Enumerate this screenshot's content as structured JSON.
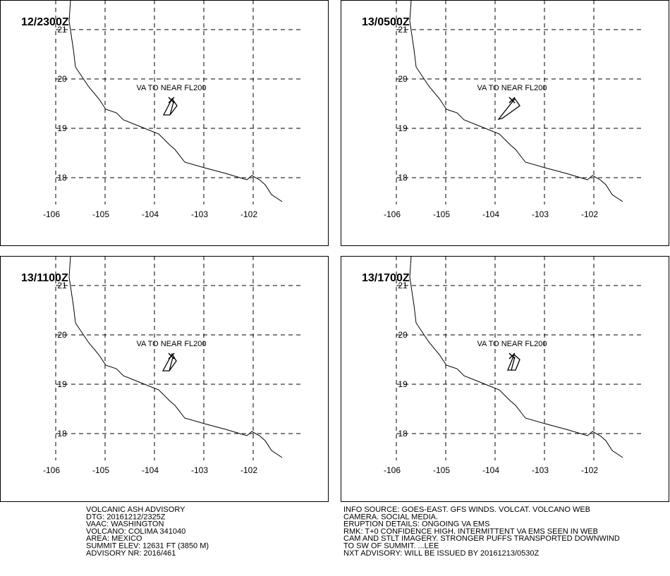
{
  "panels": [
    {
      "time": "12/2300Z",
      "annotation": "VA TO NEAR FL200"
    },
    {
      "time": "13/0500Z",
      "annotation": "VA TO NEAR FL200"
    },
    {
      "time": "13/1100Z",
      "annotation": "VA TO NEAR FL200"
    },
    {
      "time": "13/1700Z",
      "annotation": "VA TO NEAR FL200"
    }
  ],
  "grid": {
    "lons": [
      "-106",
      "-105",
      "-104",
      "-103",
      "-102"
    ],
    "lats": [
      "21",
      "20",
      "19",
      "18"
    ]
  },
  "info_left": [
    "VOLCANIC ASH ADVISORY",
    "DTG: 20161212/2325Z",
    "VAAC: WASHINGTON",
    "VOLCANO: COLIMA 341040",
    "AREA: MEXICO",
    "SUMMIT ELEV: 12631 FT (3850 M)",
    "ADVISORY NR: 2016/461"
  ],
  "info_right": [
    "INFO SOURCE: GOES-EAST. GFS WINDS. VOLCAT. VOLCANO WEB",
    "CAMERA. SOCIAL MEDIA.",
    "ERUPTION DETAILS: ONGOING VA EMS",
    "RMK: T+0 CONFIDENCE HIGH. INTERMITTENT VA EMS SEEN IN WEB",
    "CAM AND STLT IMAGERY. STRONGER PUFFS TRANSPORTED DOWNWIND",
    "TO SW OF SUMMIT. ...LEE",
    "NXT ADVISORY: WILL BE ISSUED BY 20161213/0530Z"
  ]
}
